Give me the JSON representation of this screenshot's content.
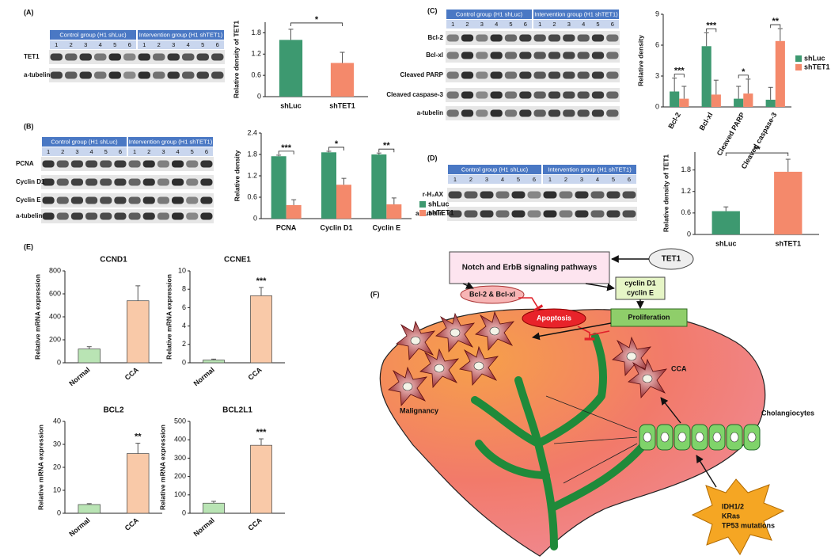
{
  "panel_labels": [
    "(A)",
    "(B)",
    "(C)",
    "(D)",
    "(E)",
    "(F)"
  ],
  "blots": [
    {
      "groups": [
        "Control group (H1 shLuc)",
        "Intervention group (H1 shTET1)"
      ],
      "lanes": [
        1,
        2,
        3,
        4,
        5,
        6
      ],
      "rows": [
        "TET1",
        "a-tubelin"
      ]
    },
    {
      "groups": [
        "Control group (H1 shLuc)",
        "Intervention group (H1 shTET1)"
      ],
      "lanes": [
        1,
        2,
        3,
        4,
        5,
        6
      ],
      "rows": [
        "PCNA",
        "Cyclin D1",
        "Cyclin E",
        "a-tubelin"
      ]
    },
    {
      "groups": [
        "Control group (H1 shLuc)",
        "Intervention group (H1 shTET1)"
      ],
      "lanes": [
        1,
        2,
        3,
        4,
        5,
        6
      ],
      "rows": [
        "Bcl-2",
        "Bcl-xl",
        "Cleaved PARP",
        "Cleaved caspase-3",
        "a-tubelin"
      ]
    },
    {
      "groups": [
        "Control group (H1 shLuc)",
        "Intervention group (H1 shTET1)"
      ],
      "lanes": [
        1,
        2,
        3,
        4,
        5,
        6
      ],
      "rows": [
        "r-H₂AX",
        "a-Tubelin"
      ]
    }
  ],
  "chart_data": [
    {
      "type": "bar",
      "categories": [
        "shLuc",
        "shTET1"
      ],
      "values": [
        1.6,
        0.95
      ],
      "errors": [
        0.3,
        0.3
      ],
      "colors": [
        "#3d9970",
        "#f4896b"
      ],
      "y_label": "Relative density of TET1",
      "ylim": [
        0,
        2.1
      ],
      "yticks": [
        0,
        0.6,
        1.2,
        1.8
      ],
      "significance": "*"
    },
    {
      "type": "bar",
      "categories": [
        "PCNA",
        "Cyclin D1",
        "Cyclin E"
      ],
      "series": [
        {
          "name": "shLuc",
          "color": "#3d9970",
          "values": [
            1.75,
            1.86,
            1.8
          ],
          "errors": [
            0.03,
            0.03,
            0.04
          ]
        },
        {
          "name": "shTET1",
          "color": "#f4896b",
          "values": [
            0.38,
            0.95,
            0.4
          ],
          "errors": [
            0.15,
            0.18,
            0.18
          ]
        }
      ],
      "y_label": "Relative density",
      "ylim": [
        0,
        2.4
      ],
      "yticks": [
        0,
        0.6,
        1.2,
        1.8,
        2.4
      ],
      "significance": [
        "***",
        "*",
        "**"
      ]
    },
    {
      "type": "bar",
      "categories": [
        "Bcl-2",
        "Bcl-xl",
        "Cleaved PARP",
        "Cleaved caspase-3"
      ],
      "series": [
        {
          "name": "shLuc",
          "color": "#3d9970",
          "values": [
            1.5,
            5.9,
            0.8,
            0.7
          ],
          "errors": [
            1.3,
            1.3,
            1.2,
            1.2
          ]
        },
        {
          "name": "shTET1",
          "color": "#f4896b",
          "values": [
            0.8,
            1.2,
            1.3,
            6.4
          ],
          "errors": [
            1.2,
            1.4,
            1.4,
            1.2
          ]
        }
      ],
      "y_label": "Relative density",
      "ylim": [
        0,
        9
      ],
      "yticks": [
        0,
        3,
        6,
        9
      ],
      "significance": [
        "***",
        "***",
        "*",
        "**"
      ]
    },
    {
      "type": "bar",
      "categories": [
        "shLuc",
        "shTET1"
      ],
      "values": [
        0.65,
        1.75
      ],
      "errors": [
        0.12,
        0.35
      ],
      "colors": [
        "#3d9970",
        "#f4896b"
      ],
      "y_label": "Relative density of TET1",
      "ylim": [
        0,
        2.3
      ],
      "yticks": [
        0,
        0.6,
        1.2,
        1.8
      ],
      "significance": "**"
    },
    {
      "type": "bar",
      "title": "CCND1",
      "categories": [
        "Normal",
        "CCA"
      ],
      "values": [
        120,
        540
      ],
      "errors": [
        20,
        130
      ],
      "colors": [
        "#b9e4b4",
        "#f9c9a8"
      ],
      "y_label": "Relative mRNA expression",
      "ylim": [
        0,
        800
      ],
      "yticks": [
        0,
        200,
        400,
        600,
        800
      ]
    },
    {
      "type": "bar",
      "title": "CCNE1",
      "categories": [
        "Normal",
        "CCA"
      ],
      "values": [
        0.3,
        7.3
      ],
      "errors": [
        0.1,
        0.9
      ],
      "colors": [
        "#b9e4b4",
        "#f9c9a8"
      ],
      "y_label": "Relative mRNA expression",
      "ylim": [
        0,
        10
      ],
      "yticks": [
        0,
        2,
        4,
        6,
        8,
        10
      ],
      "significance": "***"
    },
    {
      "type": "bar",
      "title": "BCL2",
      "categories": [
        "Normal",
        "CCA"
      ],
      "values": [
        3.8,
        26
      ],
      "errors": [
        0.4,
        4.5
      ],
      "colors": [
        "#b9e4b4",
        "#f9c9a8"
      ],
      "y_label": "Relative mRNA expression",
      "ylim": [
        0,
        40
      ],
      "yticks": [
        0,
        10,
        20,
        30,
        40
      ],
      "significance": "**"
    },
    {
      "type": "bar",
      "title": "BCL2L1",
      "categories": [
        "Normal",
        "CCA"
      ],
      "values": [
        55,
        370
      ],
      "errors": [
        10,
        35
      ],
      "colors": [
        "#b9e4b4",
        "#f9c9a8"
      ],
      "y_label": "Relative mRNA expression",
      "ylim": [
        0,
        500
      ],
      "yticks": [
        0,
        100,
        200,
        300,
        400,
        500
      ],
      "significance": "***"
    }
  ],
  "diagram": {
    "tet1": "TET1",
    "pathways": "Notch and ErbB signaling pathways",
    "cyclins": [
      "cyclin D1",
      "cyclin E"
    ],
    "bcl": "Bcl-2 & Bcl-xl",
    "apoptosis": "Apoptosis",
    "proliferation": "Proliferation",
    "cca": "CCA",
    "malignancy": "Malignancy",
    "cholangiocytes": "Cholangiocytes",
    "mutations": [
      "IDH1/2",
      "KRas",
      "TP53 mutations"
    ]
  }
}
